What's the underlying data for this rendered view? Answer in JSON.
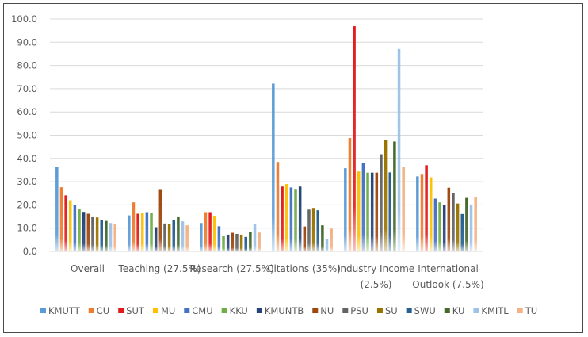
{
  "chart_data": {
    "type": "bar",
    "categories": [
      [
        "Overall"
      ],
      [
        "Teaching (27.5%)"
      ],
      [
        "Research (27.5%)"
      ],
      [
        "Citations (35%)"
      ],
      [
        "Industry Income",
        "(2.5%)"
      ],
      [
        "International",
        "Outlook (7.5%)"
      ]
    ],
    "ylim": [
      0,
      100
    ],
    "yticks": [
      "0.0",
      "10.0",
      "20.0",
      "30.0",
      "40.0",
      "50.0",
      "60.0",
      "70.0",
      "80.0",
      "90.0",
      "100.0"
    ],
    "grid": true,
    "legend_position": "bottom",
    "series": [
      {
        "name": "KMUTT",
        "color": "#5b9bd5",
        "values": [
          36.3,
          15.5,
          12.2,
          72.2,
          35.8,
          32.3
        ]
      },
      {
        "name": "CU",
        "color": "#ed7d31",
        "values": [
          27.6,
          21.1,
          16.9,
          38.5,
          48.8,
          33.0
        ]
      },
      {
        "name": "SUT",
        "color": "#e31a1c",
        "values": [
          24.1,
          16.2,
          16.9,
          27.9,
          96.9,
          37.1
        ]
      },
      {
        "name": "MU",
        "color": "#ffc000",
        "values": [
          22.0,
          16.6,
          15.0,
          29.0,
          34.4,
          31.9
        ]
      },
      {
        "name": "CMU",
        "color": "#4472c4",
        "values": [
          20.1,
          16.9,
          10.8,
          27.5,
          37.9,
          22.7
        ]
      },
      {
        "name": "KKU",
        "color": "#70ad47",
        "values": [
          18.3,
          16.7,
          6.5,
          26.9,
          33.9,
          21.1
        ]
      },
      {
        "name": "KMUNTB",
        "color": "#264478",
        "values": [
          17.0,
          10.4,
          7.2,
          27.9,
          33.9,
          19.9
        ]
      },
      {
        "name": "NU",
        "color": "#9e480e",
        "values": [
          16.2,
          26.8,
          8.0,
          10.7,
          33.9,
          27.4
        ]
      },
      {
        "name": "PSU",
        "color": "#636363",
        "values": [
          14.7,
          12.0,
          7.5,
          18.0,
          41.8,
          25.2
        ]
      },
      {
        "name": "SU",
        "color": "#997300",
        "values": [
          14.6,
          11.9,
          7.2,
          18.7,
          48.1,
          20.6
        ]
      },
      {
        "name": "SWU",
        "color": "#255e91",
        "values": [
          13.6,
          13.3,
          6.2,
          17.7,
          34.0,
          16.1
        ]
      },
      {
        "name": "KU",
        "color": "#43682b",
        "values": [
          13.1,
          14.7,
          8.3,
          11.2,
          47.3,
          23.0
        ]
      },
      {
        "name": "KMITL",
        "color": "#9dc3e6",
        "values": [
          12.2,
          12.9,
          11.9,
          5.4,
          87.1,
          19.8
        ]
      },
      {
        "name": "TU",
        "color": "#f4b183",
        "values": [
          11.6,
          11.2,
          8.1,
          9.8,
          36.5,
          23.2
        ]
      }
    ]
  }
}
